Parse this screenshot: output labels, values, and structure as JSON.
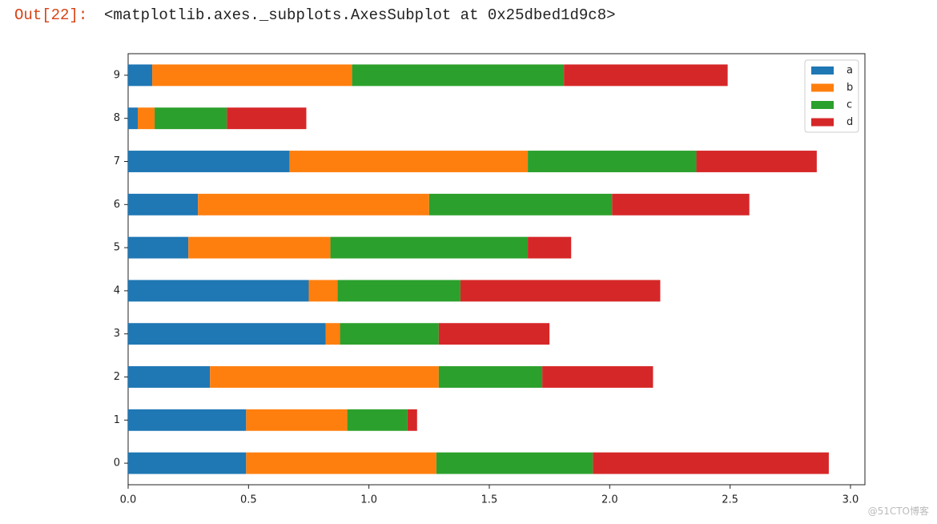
{
  "prompt": "Out[22]:",
  "output_text": "<matplotlib.axes._subplots.AxesSubplot at 0x25dbed1d9c8>",
  "watermark": "@51CTO博客",
  "chart_data": {
    "type": "stacked-barh",
    "categories": [
      "0",
      "1",
      "2",
      "3",
      "4",
      "5",
      "6",
      "7",
      "8",
      "9"
    ],
    "series": [
      {
        "name": "a",
        "color": "#1f77b4",
        "values": [
          0.49,
          0.49,
          0.34,
          0.82,
          0.75,
          0.25,
          0.29,
          0.67,
          0.04,
          0.1
        ]
      },
      {
        "name": "b",
        "color": "#ff7f0e",
        "values": [
          0.79,
          0.42,
          0.95,
          0.06,
          0.12,
          0.59,
          0.96,
          0.99,
          0.07,
          0.83
        ]
      },
      {
        "name": "c",
        "color": "#2ca02c",
        "values": [
          0.65,
          0.25,
          0.43,
          0.41,
          0.51,
          0.82,
          0.76,
          0.7,
          0.3,
          0.88
        ]
      },
      {
        "name": "d",
        "color": "#d62728",
        "values": [
          0.98,
          0.04,
          0.46,
          0.46,
          0.83,
          0.18,
          0.57,
          0.5,
          0.33,
          0.68
        ]
      }
    ],
    "xlim": [
      0,
      3.06
    ],
    "xticks": [
      {
        "value": 0,
        "label": "0.0"
      },
      {
        "value": 0.5,
        "label": "0.5"
      },
      {
        "value": 1,
        "label": "1.0"
      },
      {
        "value": 1.5,
        "label": "1.5"
      },
      {
        "value": 2,
        "label": "2.0"
      },
      {
        "value": 2.5,
        "label": "2.5"
      },
      {
        "value": 3,
        "label": "3.0"
      }
    ],
    "legend": "upper right",
    "grid": false
  }
}
